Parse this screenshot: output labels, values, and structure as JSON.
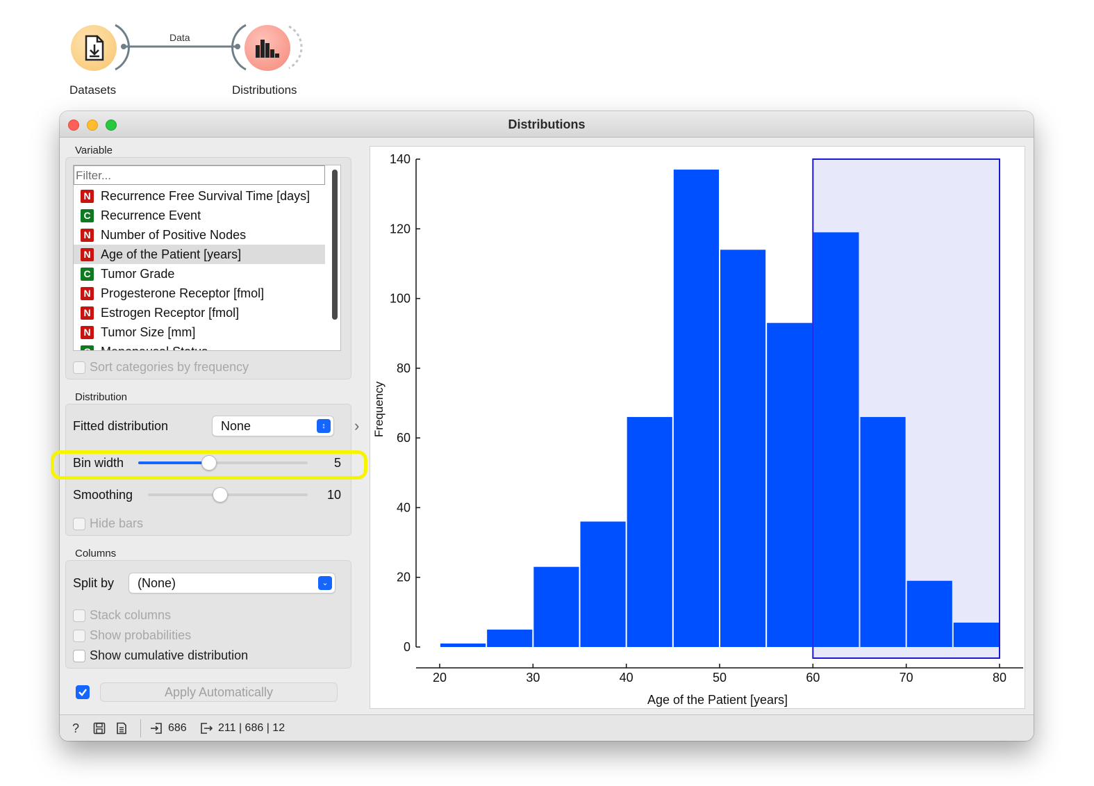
{
  "workflow": {
    "nodes": [
      {
        "label": "Datasets"
      },
      {
        "label": "Distributions"
      }
    ],
    "link_label": "Data"
  },
  "window": {
    "title": "Distributions"
  },
  "variable": {
    "section_title": "Variable",
    "filter_placeholder": "Filter...",
    "items": [
      {
        "type": "N",
        "label": "Recurrence Free Survival Time [days]"
      },
      {
        "type": "C",
        "label": "Recurrence Event"
      },
      {
        "type": "N",
        "label": "Number of Positive Nodes"
      },
      {
        "type": "N",
        "label": "Age of the Patient [years]",
        "selected": true
      },
      {
        "type": "C",
        "label": "Tumor Grade"
      },
      {
        "type": "N",
        "label": "Progesterone Receptor [fmol]"
      },
      {
        "type": "N",
        "label": "Estrogen Receptor [fmol]"
      },
      {
        "type": "N",
        "label": "Tumor Size [mm]"
      },
      {
        "type": "C",
        "label": "Menopausal Status"
      }
    ],
    "sort_label": "Sort categories by frequency"
  },
  "distribution": {
    "section_title": "Distribution",
    "fitted_label": "Fitted distribution",
    "fitted_value": "None",
    "bin_width_label": "Bin width",
    "bin_width_value": "5",
    "bin_width_level": 0.42,
    "smoothing_label": "Smoothing",
    "smoothing_value": "10",
    "smoothing_level": 0.45,
    "hide_bars_label": "Hide bars"
  },
  "columns": {
    "section_title": "Columns",
    "split_label": "Split by",
    "split_value": "(None)",
    "stack_label": "Stack columns",
    "probabilities_label": "Show probabilities",
    "cumulative_label": "Show cumulative distribution"
  },
  "apply": {
    "label": "Apply Automatically",
    "checked": true
  },
  "statusbar": {
    "input_count": "686",
    "output_summary": "211 | 686 | 12"
  },
  "colors": {
    "bar": "#0050ff",
    "selection_fill": "#e8e8fb",
    "selection_border": "#1a1ad6",
    "accent": "#1565ff"
  },
  "chart_data": {
    "type": "bar",
    "bin_edges": [
      20,
      25,
      30,
      35,
      40,
      45,
      50,
      55,
      60,
      65,
      70,
      75,
      80
    ],
    "values": [
      1,
      5,
      23,
      36,
      66,
      137,
      114,
      93,
      119,
      66,
      19,
      7
    ],
    "xlabel": "Age of the Patient [years]",
    "ylabel": "Frequency",
    "xlim": [
      20,
      80
    ],
    "ylim": [
      0,
      140
    ],
    "x_ticks": [
      20,
      30,
      40,
      50,
      60,
      70,
      80
    ],
    "y_ticks": [
      0,
      20,
      40,
      60,
      80,
      100,
      120,
      140
    ],
    "selection": [
      60,
      80
    ],
    "grid": false
  }
}
